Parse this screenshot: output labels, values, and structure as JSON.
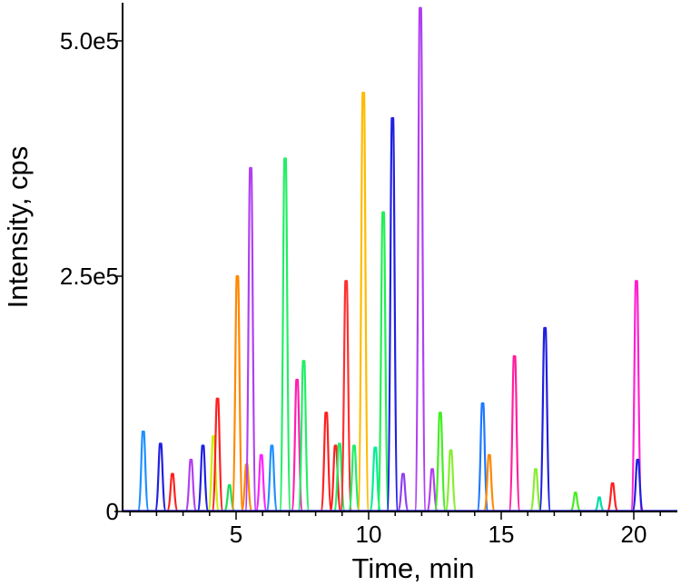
{
  "chart_data": {
    "type": "line",
    "title": "",
    "xlabel": "Time, min",
    "ylabel": "Intensity, cps",
    "xlim": [
      0.3,
      21.3
    ],
    "ylim": [
      0,
      540000
    ],
    "xticks": [
      5,
      10,
      15,
      20
    ],
    "xtick_labels": [
      "5",
      "10",
      "15",
      "20"
    ],
    "yticks": [
      0,
      250000,
      500000
    ],
    "ytick_labels": [
      "0",
      "2.5e5",
      "5.0e5"
    ],
    "minor_xticks": [
      1,
      2,
      3,
      4,
      6,
      7,
      8,
      9,
      11,
      12,
      13,
      14,
      16,
      17,
      18,
      19,
      21
    ],
    "grid": false,
    "legend": "none",
    "series": [
      {
        "x": 1.5,
        "y": 85000,
        "color": "#1e90ff"
      },
      {
        "x": 2.15,
        "y": 72000,
        "color": "#2020e0"
      },
      {
        "x": 2.6,
        "y": 40000,
        "color": "#ff2020"
      },
      {
        "x": 3.3,
        "y": 55000,
        "color": "#b040f0"
      },
      {
        "x": 3.75,
        "y": 70000,
        "color": "#2020e0"
      },
      {
        "x": 4.15,
        "y": 80000,
        "color": "#ccee00"
      },
      {
        "x": 4.3,
        "y": 120000,
        "color": "#ff2020"
      },
      {
        "x": 4.75,
        "y": 28000,
        "color": "#22dd55"
      },
      {
        "x": 5.05,
        "y": 250000,
        "color": "#ff8800"
      },
      {
        "x": 5.4,
        "y": 50000,
        "color": "#ff8800"
      },
      {
        "x": 5.55,
        "y": 365000,
        "color": "#b040f0"
      },
      {
        "x": 5.95,
        "y": 60000,
        "color": "#ff20ff"
      },
      {
        "x": 6.35,
        "y": 70000,
        "color": "#1e90ff"
      },
      {
        "x": 6.85,
        "y": 375000,
        "color": "#22ee66"
      },
      {
        "x": 7.3,
        "y": 140000,
        "color": "#ff20b0"
      },
      {
        "x": 7.55,
        "y": 160000,
        "color": "#22ee66"
      },
      {
        "x": 8.4,
        "y": 105000,
        "color": "#ff2020"
      },
      {
        "x": 8.75,
        "y": 70000,
        "color": "#ff2020"
      },
      {
        "x": 8.9,
        "y": 72000,
        "color": "#22ee66"
      },
      {
        "x": 9.15,
        "y": 245000,
        "color": "#ff3030"
      },
      {
        "x": 9.45,
        "y": 70000,
        "color": "#22ee66"
      },
      {
        "x": 9.8,
        "y": 445000,
        "color": "#ffbb00"
      },
      {
        "x": 10.25,
        "y": 68000,
        "color": "#00ee99"
      },
      {
        "x": 10.55,
        "y": 318000,
        "color": "#22ee55"
      },
      {
        "x": 10.9,
        "y": 418000,
        "color": "#2020e0"
      },
      {
        "x": 11.3,
        "y": 40000,
        "color": "#9040f0"
      },
      {
        "x": 11.95,
        "y": 535000,
        "color": "#b040f0"
      },
      {
        "x": 12.4,
        "y": 45000,
        "color": "#b040f0"
      },
      {
        "x": 12.7,
        "y": 105000,
        "color": "#44ee22"
      },
      {
        "x": 13.1,
        "y": 65000,
        "color": "#88ee33"
      },
      {
        "x": 14.3,
        "y": 115000,
        "color": "#1e78ff"
      },
      {
        "x": 14.55,
        "y": 60000,
        "color": "#ff8800"
      },
      {
        "x": 15.5,
        "y": 165000,
        "color": "#ff20a0"
      },
      {
        "x": 16.3,
        "y": 45000,
        "color": "#88ee33"
      },
      {
        "x": 16.65,
        "y": 195000,
        "color": "#2020e0"
      },
      {
        "x": 17.8,
        "y": 20000,
        "color": "#44ee22"
      },
      {
        "x": 18.7,
        "y": 15000,
        "color": "#00ddaa"
      },
      {
        "x": 19.2,
        "y": 30000,
        "color": "#ff2020"
      },
      {
        "x": 20.1,
        "y": 245000,
        "color": "#ff20d0"
      },
      {
        "x": 20.15,
        "y": 55000,
        "color": "#2020e0"
      }
    ]
  }
}
